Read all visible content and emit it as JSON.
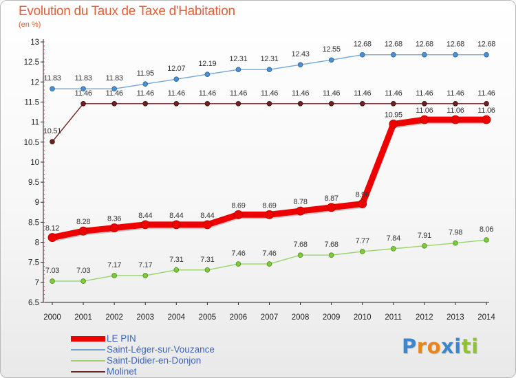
{
  "chart_title": "Evolution du Taux de Taxe d'Habitation",
  "unit_label": "(en %)",
  "brand": {
    "letters": [
      "P",
      "r",
      "o",
      "x",
      "i",
      "t",
      "i"
    ],
    "colors": [
      "#3b86cc",
      "#e8861e",
      "#e8861e",
      "#3b86cc",
      "#3b86cc",
      "#8fc232",
      "#8fc232"
    ]
  },
  "chart_data": {
    "type": "line",
    "title": "Evolution du Taux de Taxe d'Habitation",
    "ylabel": "(en %)",
    "xlabel": "",
    "x": [
      "2000",
      "2001",
      "2002",
      "2003",
      "2004",
      "2005",
      "2006",
      "2007",
      "2008",
      "2009",
      "2010",
      "2011",
      "2012",
      "2013",
      "2014"
    ],
    "ylim": [
      6.5,
      13
    ],
    "yticks": [
      "6.5",
      "7",
      "7.5",
      "8",
      "8.5",
      "9",
      "9.5",
      "10",
      "10.5",
      "11",
      "11.5",
      "12",
      "12.5",
      "13"
    ],
    "grid": false,
    "legend_position": "bottom-left",
    "series": [
      {
        "name": "LE PIN",
        "color": "#ee0000",
        "values": [
          8.12,
          8.28,
          8.36,
          8.44,
          8.44,
          8.44,
          8.69,
          8.69,
          8.78,
          8.87,
          8.96,
          10.95,
          11.06,
          11.06,
          11.06
        ],
        "labels": [
          "8.12",
          "8.28",
          "8.36",
          "8.44",
          "8.44",
          "8.44",
          "8.69",
          "8.69",
          "8.78",
          "8.87",
          "8.96",
          "10.95",
          "11.06",
          "11.06",
          "11.06"
        ]
      },
      {
        "name": "Saint-Léger-sur-Vouzance",
        "color": "#6fa8d8",
        "values": [
          11.83,
          11.83,
          11.83,
          11.95,
          12.07,
          12.19,
          12.31,
          12.31,
          12.43,
          12.55,
          12.68,
          12.68,
          12.68,
          12.68,
          12.68
        ],
        "labels": [
          "11.83",
          "11.83",
          "11.83",
          "11.95",
          "12.07",
          "12.19",
          "12.31",
          "12.31",
          "12.43",
          "12.55",
          "12.68",
          "12.68",
          "12.68",
          "12.68",
          "12.68"
        ]
      },
      {
        "name": "Saint-Didier-en-Donjon",
        "color": "#99d46a",
        "values": [
          7.03,
          7.03,
          7.17,
          7.17,
          7.31,
          7.31,
          7.46,
          7.46,
          7.68,
          7.68,
          7.77,
          7.84,
          7.91,
          7.98,
          8.06
        ],
        "labels": [
          "7.03",
          "7.03",
          "7.17",
          "7.17",
          "7.31",
          "7.31",
          "7.46",
          "7.46",
          "7.68",
          "7.68",
          "7.77",
          "7.84",
          "7.91",
          "7.98",
          "8.06"
        ]
      },
      {
        "name": "Molinet",
        "color": "#6b2222",
        "values": [
          10.51,
          11.46,
          11.46,
          11.46,
          11.46,
          11.46,
          11.46,
          11.46,
          11.46,
          11.46,
          11.46,
          11.46,
          11.46,
          11.46,
          11.46
        ],
        "labels": [
          "10.51",
          "11.46",
          "11.46",
          "11.46",
          "11.46",
          "11.46",
          "11.46",
          "11.46",
          "11.46",
          "11.46",
          "11.46",
          "11.46",
          "11.46",
          "11.46",
          "11.46"
        ]
      }
    ]
  }
}
